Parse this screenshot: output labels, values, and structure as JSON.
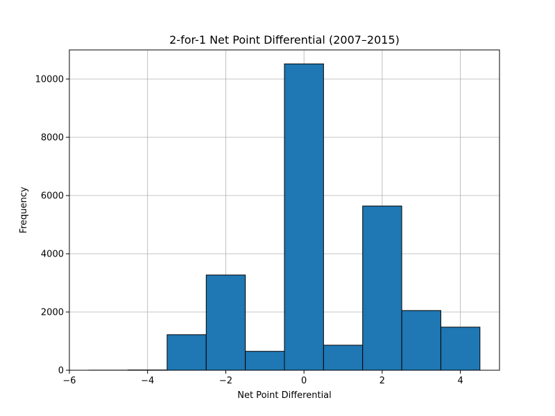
{
  "chart_data": {
    "type": "bar",
    "title": "2-for-1 Net Point Differential (2007–2015)",
    "xlabel": "Net Point Differential",
    "ylabel": "Frequency",
    "xlim": [
      -6,
      5
    ],
    "ylim": [
      0,
      11000
    ],
    "xticks": [
      -6,
      -4,
      -2,
      0,
      2,
      4
    ],
    "xtick_labels": [
      "−6",
      "−4",
      "−2",
      "0",
      "2",
      "4"
    ],
    "yticks": [
      0,
      2000,
      4000,
      6000,
      8000,
      10000
    ],
    "ytick_labels": [
      "0",
      "2000",
      "4000",
      "6000",
      "8000",
      "10000"
    ],
    "grid": true,
    "bar_color": "#1f77b4",
    "edge_color": "#000000",
    "bins": [
      {
        "x0": -5.5,
        "x1": -4.5,
        "value": 3
      },
      {
        "x0": -4.5,
        "x1": -3.5,
        "value": 10
      },
      {
        "x0": -3.5,
        "x1": -2.5,
        "value": 1220
      },
      {
        "x0": -2.5,
        "x1": -1.5,
        "value": 3270
      },
      {
        "x0": -1.5,
        "x1": -0.5,
        "value": 650
      },
      {
        "x0": -0.5,
        "x1": 0.5,
        "value": 10520
      },
      {
        "x0": 0.5,
        "x1": 1.5,
        "value": 860
      },
      {
        "x0": 1.5,
        "x1": 2.5,
        "value": 5640
      },
      {
        "x0": 2.5,
        "x1": 3.5,
        "value": 2050
      },
      {
        "x0": 3.5,
        "x1": 4.5,
        "value": 1480
      }
    ]
  }
}
